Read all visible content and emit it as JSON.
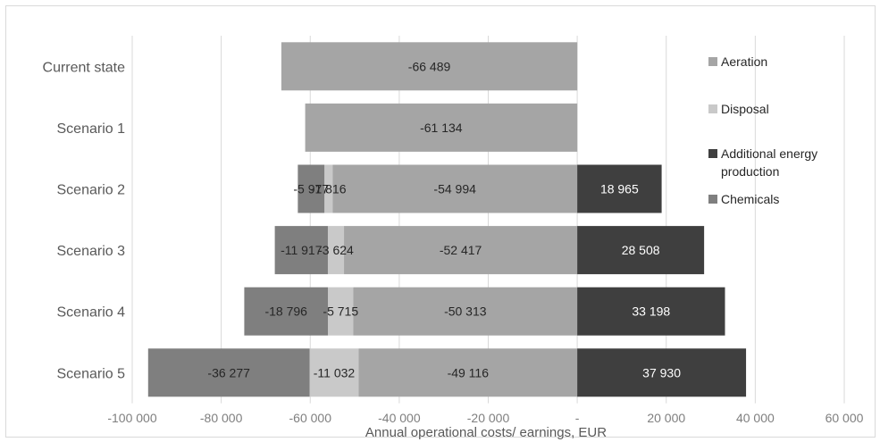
{
  "chart_data": {
    "type": "bar",
    "orientation": "horizontal",
    "stacked": true,
    "categories": [
      "Current state",
      "Scenario 1",
      "Scenario 2",
      "Scenario 3",
      "Scenario 4",
      "Scenario 5"
    ],
    "series": [
      {
        "name": "Aeration",
        "color": "#a5a5a5",
        "label_color": "#262626",
        "values": [
          -66489,
          -61134,
          -54994,
          -52417,
          -50313,
          -49116
        ]
      },
      {
        "name": "Disposal",
        "color": "#c9c9c9",
        "label_color": "#262626",
        "values": [
          0,
          0,
          -1816,
          -3624,
          -5715,
          -11032
        ]
      },
      {
        "name": "Additional energy production",
        "color": "#3f3f3f",
        "label_color": "#ffffff",
        "values": [
          0,
          0,
          18965,
          28508,
          33198,
          37930
        ]
      },
      {
        "name": "Chemicals",
        "color": "#7f7f7f",
        "label_color": "#262626",
        "values": [
          0,
          0,
          -5977,
          -11917,
          -18796,
          -36277
        ]
      }
    ],
    "data_labels": [
      [
        {
          "series": 0,
          "text": "-66 489"
        }
      ],
      [
        {
          "series": 0,
          "text": "-61 134"
        }
      ],
      [
        {
          "series": 3,
          "text": "-5 977"
        },
        {
          "series": 1,
          "text": "-1 816"
        },
        {
          "series": 0,
          "text": "-54 994"
        },
        {
          "series": 2,
          "text": "18 965"
        }
      ],
      [
        {
          "series": 3,
          "text": "-11 917"
        },
        {
          "series": 1,
          "text": "-3 624"
        },
        {
          "series": 0,
          "text": "-52 417"
        },
        {
          "series": 2,
          "text": "28 508"
        }
      ],
      [
        {
          "series": 3,
          "text": "-18 796"
        },
        {
          "series": 1,
          "text": "-5 715"
        },
        {
          "series": 0,
          "text": "-50 313"
        },
        {
          "series": 2,
          "text": "33 198"
        }
      ],
      [
        {
          "series": 3,
          "text": "-36 277"
        },
        {
          "series": 1,
          "text": "-11 032"
        },
        {
          "series": 0,
          "text": "-49 116"
        },
        {
          "series": 2,
          "text": "37 930"
        }
      ]
    ],
    "xlim": [
      -100000,
      60000
    ],
    "xticks": [
      -100000,
      -80000,
      -60000,
      -40000,
      -20000,
      0,
      20000,
      40000,
      60000
    ],
    "xtick_labels": [
      "-100 000",
      "-80 000",
      "-60 000",
      "-40 000",
      "-20 000",
      "-",
      "20 000",
      "40 000",
      "60 000"
    ],
    "xlabel": "Annual operational costs/ earnings, EUR",
    "ylabel": "",
    "grid": "vertical",
    "legend_position": "right",
    "legend_items": [
      {
        "series": 0,
        "lines": [
          "Aeration"
        ]
      },
      {
        "series": 1,
        "lines": [
          "Disposal"
        ]
      },
      {
        "series": 2,
        "lines": [
          "Additional energy",
          "production"
        ]
      },
      {
        "series": 3,
        "lines": [
          "Chemicals"
        ]
      }
    ]
  }
}
